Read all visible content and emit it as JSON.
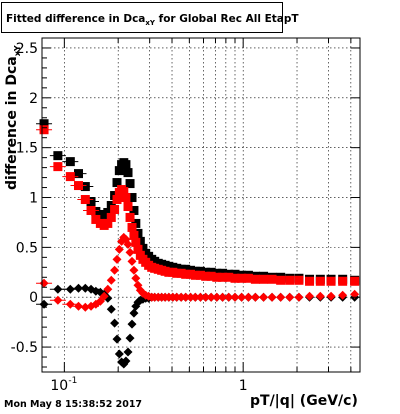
{
  "title": {
    "prefix": "Fitted difference in Dca",
    "subscript": "xY",
    "suffix": " for Global Rec All EtapT"
  },
  "footer": {
    "timestamp": "Mon May  8 15:38:52 2017"
  },
  "chart_data": {
    "type": "scatter",
    "xlabel": "pT/|q| (GeV/c)",
    "ylabel": "difference in Dca",
    "ylabel_subscript": "xY",
    "xscale": "log",
    "xlim": [
      0.075,
      4.5
    ],
    "ylim": [
      -0.75,
      2.6
    ],
    "grid": true,
    "y_ticks": [
      -0.5,
      0,
      0.5,
      1,
      1.5,
      2,
      2.5
    ],
    "y_tick_labels": [
      "-0.5",
      "0",
      "0.5",
      "1",
      "1.5",
      "2",
      "2.5"
    ],
    "x_tick_labels": [
      "10",
      "1"
    ],
    "x_tick_label_exp": "-1",
    "colors": {
      "black": "#000000",
      "red": "#ff0000"
    },
    "series": [
      {
        "marker": "square",
        "color": "#000000",
        "points": [
          [
            0.077,
            1.74
          ],
          [
            0.092,
            1.42
          ],
          [
            0.108,
            1.36
          ],
          [
            0.12,
            1.24
          ],
          [
            0.131,
            1.11
          ],
          [
            0.141,
            0.96
          ],
          [
            0.15,
            0.86
          ],
          [
            0.159,
            0.83
          ],
          [
            0.167,
            0.82
          ],
          [
            0.175,
            0.85
          ],
          [
            0.183,
            0.92
          ],
          [
            0.191,
            1.02
          ],
          [
            0.197,
            1.15
          ],
          [
            0.203,
            1.27
          ],
          [
            0.209,
            1.33
          ],
          [
            0.215,
            1.35
          ],
          [
            0.221,
            1.33
          ],
          [
            0.227,
            1.25
          ],
          [
            0.233,
            1.14
          ],
          [
            0.239,
            1.0
          ],
          [
            0.245,
            0.87
          ],
          [
            0.251,
            0.74
          ],
          [
            0.258,
            0.64
          ],
          [
            0.266,
            0.56
          ],
          [
            0.275,
            0.49
          ],
          [
            0.285,
            0.44
          ],
          [
            0.296,
            0.41
          ],
          [
            0.308,
            0.38
          ],
          [
            0.32,
            0.36
          ],
          [
            0.335,
            0.34
          ],
          [
            0.35,
            0.33
          ],
          [
            0.366,
            0.32
          ],
          [
            0.384,
            0.31
          ],
          [
            0.404,
            0.3
          ],
          [
            0.425,
            0.29
          ],
          [
            0.45,
            0.28
          ],
          [
            0.477,
            0.28
          ],
          [
            0.508,
            0.27
          ],
          [
            0.54,
            0.26
          ],
          [
            0.577,
            0.26
          ],
          [
            0.617,
            0.25
          ],
          [
            0.662,
            0.25
          ],
          [
            0.712,
            0.24
          ],
          [
            0.767,
            0.24
          ],
          [
            0.83,
            0.23
          ],
          [
            0.9,
            0.23
          ],
          [
            0.98,
            0.22
          ],
          [
            1.07,
            0.22
          ],
          [
            1.17,
            0.21
          ],
          [
            1.3,
            0.21
          ],
          [
            1.45,
            0.2
          ],
          [
            1.62,
            0.2
          ],
          [
            1.82,
            0.19
          ],
          [
            2.05,
            0.19
          ],
          [
            2.35,
            0.18
          ],
          [
            2.7,
            0.18
          ],
          [
            3.1,
            0.18
          ],
          [
            3.6,
            0.18
          ],
          [
            4.2,
            0.17
          ]
        ]
      },
      {
        "marker": "square",
        "color": "#ff0000",
        "points": [
          [
            0.077,
            1.68
          ],
          [
            0.092,
            1.31
          ],
          [
            0.108,
            1.21
          ],
          [
            0.12,
            1.12
          ],
          [
            0.131,
            0.98
          ],
          [
            0.141,
            0.87
          ],
          [
            0.15,
            0.78
          ],
          [
            0.159,
            0.74
          ],
          [
            0.167,
            0.72
          ],
          [
            0.175,
            0.74
          ],
          [
            0.183,
            0.8
          ],
          [
            0.191,
            0.88
          ],
          [
            0.197,
            0.98
          ],
          [
            0.203,
            1.05
          ],
          [
            0.209,
            1.08
          ],
          [
            0.215,
            1.06
          ],
          [
            0.221,
            1.0
          ],
          [
            0.227,
            0.91
          ],
          [
            0.233,
            0.8
          ],
          [
            0.239,
            0.7
          ],
          [
            0.245,
            0.62
          ],
          [
            0.251,
            0.55
          ],
          [
            0.258,
            0.48
          ],
          [
            0.266,
            0.42
          ],
          [
            0.275,
            0.38
          ],
          [
            0.285,
            0.35
          ],
          [
            0.296,
            0.32
          ],
          [
            0.308,
            0.3
          ],
          [
            0.32,
            0.29
          ],
          [
            0.335,
            0.28
          ],
          [
            0.35,
            0.27
          ],
          [
            0.366,
            0.26
          ],
          [
            0.384,
            0.25
          ],
          [
            0.404,
            0.25
          ],
          [
            0.425,
            0.24
          ],
          [
            0.45,
            0.24
          ],
          [
            0.477,
            0.23
          ],
          [
            0.508,
            0.23
          ],
          [
            0.54,
            0.22
          ],
          [
            0.577,
            0.22
          ],
          [
            0.617,
            0.21
          ],
          [
            0.662,
            0.21
          ],
          [
            0.712,
            0.2
          ],
          [
            0.767,
            0.2
          ],
          [
            0.83,
            0.2
          ],
          [
            0.9,
            0.19
          ],
          [
            0.98,
            0.19
          ],
          [
            1.07,
            0.19
          ],
          [
            1.17,
            0.18
          ],
          [
            1.3,
            0.18
          ],
          [
            1.45,
            0.18
          ],
          [
            1.62,
            0.17
          ],
          [
            1.82,
            0.17
          ],
          [
            2.05,
            0.17
          ],
          [
            2.35,
            0.16
          ],
          [
            2.7,
            0.16
          ],
          [
            3.1,
            0.16
          ],
          [
            3.6,
            0.16
          ],
          [
            4.2,
            0.16
          ]
        ]
      },
      {
        "marker": "diamond",
        "color": "#000000",
        "points": [
          [
            0.077,
            -0.07
          ],
          [
            0.092,
            0.08
          ],
          [
            0.108,
            0.08
          ],
          [
            0.12,
            0.09
          ],
          [
            0.131,
            0.09
          ],
          [
            0.141,
            0.08
          ],
          [
            0.15,
            0.06
          ],
          [
            0.159,
            0.05
          ],
          [
            0.167,
            0.03
          ],
          [
            0.175,
            -0.01
          ],
          [
            0.183,
            -0.12
          ],
          [
            0.191,
            -0.26
          ],
          [
            0.197,
            -0.42
          ],
          [
            0.203,
            -0.57
          ],
          [
            0.209,
            -0.65
          ],
          [
            0.215,
            -0.67
          ],
          [
            0.221,
            -0.64
          ],
          [
            0.227,
            -0.55
          ],
          [
            0.233,
            -0.41
          ],
          [
            0.239,
            -0.27
          ],
          [
            0.245,
            -0.16
          ],
          [
            0.251,
            -0.09
          ],
          [
            0.258,
            -0.05
          ],
          [
            0.266,
            -0.03
          ],
          [
            0.275,
            -0.02
          ],
          [
            0.285,
            -0.01
          ],
          [
            0.296,
            -0.01
          ],
          [
            0.308,
            0.0
          ],
          [
            0.32,
            0.0
          ],
          [
            0.335,
            0.0
          ],
          [
            0.35,
            0.0
          ],
          [
            0.366,
            0.0
          ],
          [
            0.384,
            0.0
          ],
          [
            0.404,
            0.0
          ],
          [
            0.425,
            0.0
          ],
          [
            0.45,
            0.0
          ],
          [
            0.477,
            0.0
          ],
          [
            0.508,
            0.0
          ],
          [
            0.54,
            0.0
          ],
          [
            0.577,
            0.0
          ],
          [
            0.617,
            0.0
          ],
          [
            0.662,
            0.0
          ],
          [
            0.712,
            0.0
          ],
          [
            0.767,
            0.0
          ],
          [
            0.83,
            0.0
          ],
          [
            0.9,
            0.0
          ],
          [
            0.98,
            0.0
          ],
          [
            1.07,
            0.0
          ],
          [
            1.17,
            0.0
          ],
          [
            1.3,
            0.0
          ],
          [
            1.45,
            0.0
          ],
          [
            1.62,
            0.0
          ],
          [
            1.82,
            0.0
          ],
          [
            2.05,
            0.0
          ],
          [
            2.35,
            0.0
          ],
          [
            2.7,
            0.0
          ],
          [
            3.1,
            0.0
          ],
          [
            3.6,
            0.0
          ],
          [
            4.2,
            0.0
          ]
        ]
      },
      {
        "marker": "diamond",
        "color": "#ff0000",
        "points": [
          [
            0.077,
            0.14
          ],
          [
            0.092,
            -0.03
          ],
          [
            0.108,
            -0.07
          ],
          [
            0.12,
            -0.09
          ],
          [
            0.131,
            -0.1
          ],
          [
            0.141,
            -0.09
          ],
          [
            0.15,
            -0.07
          ],
          [
            0.159,
            -0.04
          ],
          [
            0.167,
            0.01
          ],
          [
            0.175,
            0.08
          ],
          [
            0.183,
            0.17
          ],
          [
            0.191,
            0.27
          ],
          [
            0.197,
            0.38
          ],
          [
            0.203,
            0.48
          ],
          [
            0.209,
            0.56
          ],
          [
            0.215,
            0.6
          ],
          [
            0.221,
            0.58
          ],
          [
            0.227,
            0.53
          ],
          [
            0.233,
            0.45
          ],
          [
            0.239,
            0.36
          ],
          [
            0.245,
            0.27
          ],
          [
            0.251,
            0.19
          ],
          [
            0.258,
            0.12
          ],
          [
            0.266,
            0.07
          ],
          [
            0.275,
            0.04
          ],
          [
            0.285,
            0.02
          ],
          [
            0.296,
            0.01
          ],
          [
            0.308,
            0.0
          ],
          [
            0.32,
            0.0
          ],
          [
            0.335,
            0.0
          ],
          [
            0.35,
            0.0
          ],
          [
            0.366,
            0.0
          ],
          [
            0.384,
            0.0
          ],
          [
            0.404,
            0.0
          ],
          [
            0.425,
            0.0
          ],
          [
            0.45,
            0.0
          ],
          [
            0.477,
            0.0
          ],
          [
            0.508,
            0.0
          ],
          [
            0.54,
            0.0
          ],
          [
            0.577,
            0.0
          ],
          [
            0.617,
            0.0
          ],
          [
            0.662,
            0.0
          ],
          [
            0.712,
            0.0
          ],
          [
            0.767,
            0.0
          ],
          [
            0.83,
            0.0
          ],
          [
            0.9,
            0.0
          ],
          [
            0.98,
            0.0
          ],
          [
            1.07,
            0.0
          ],
          [
            1.17,
            0.0
          ],
          [
            1.3,
            0.0
          ],
          [
            1.45,
            0.0
          ],
          [
            1.62,
            0.0
          ],
          [
            1.82,
            0.0
          ],
          [
            2.05,
            0.0
          ],
          [
            2.35,
            0.01
          ],
          [
            2.7,
            0.01
          ],
          [
            3.1,
            0.01
          ],
          [
            3.6,
            0.02
          ],
          [
            4.2,
            0.03
          ]
        ]
      }
    ]
  }
}
